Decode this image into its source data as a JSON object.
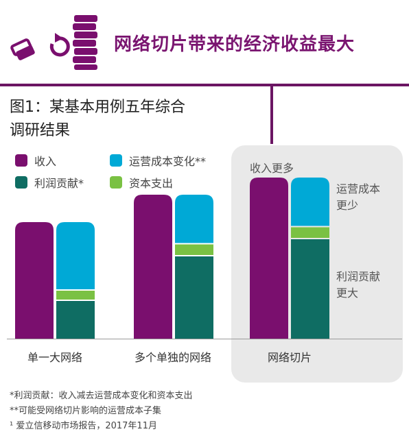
{
  "header": {
    "title": "网络切片带来的经济收益最大"
  },
  "figure": {
    "title_line1": "图1：某基本用例五年综合",
    "title_line2": "调研结果"
  },
  "legend": [
    {
      "key": "revenue",
      "label": "收入",
      "color": "#7a0f6e"
    },
    {
      "key": "opex",
      "label": "运营成本变化**",
      "color": "#00a9d6"
    },
    {
      "key": "profit",
      "label": "利润贡献*",
      "color": "#0f6d63"
    },
    {
      "key": "capex",
      "label": "资本支出",
      "color": "#7ac143"
    }
  ],
  "annotations": {
    "more_revenue": "收入更多",
    "less_opex_line1": "运营成本",
    "less_opex_line2": "更少",
    "more_profit_line1": "利润贡献",
    "more_profit_line2": "更大"
  },
  "chart_data": {
    "type": "bar",
    "categories": [
      "单一大网络",
      "多个单独的网络",
      "网络切片"
    ],
    "ylim": [
      0,
      100
    ],
    "series": [
      {
        "name": "收入",
        "stack": "revenue",
        "values": [
          68,
          84,
          94
        ]
      },
      {
        "name": "利润贡献*",
        "stack": "cost",
        "values": [
          22,
          48,
          58
        ]
      },
      {
        "name": "资本支出",
        "stack": "cost",
        "values": [
          6,
          7,
          7
        ]
      },
      {
        "name": "运营成本变化**",
        "stack": "cost",
        "values": [
          40,
          29,
          29
        ]
      }
    ]
  },
  "footnotes": [
    "*利润贡献：收入减去运营成本变化和资本支出",
    "**可能受网络切片影响的运营成本子集",
    "¹ 爱立信移动市场报告，2017年11月"
  ]
}
